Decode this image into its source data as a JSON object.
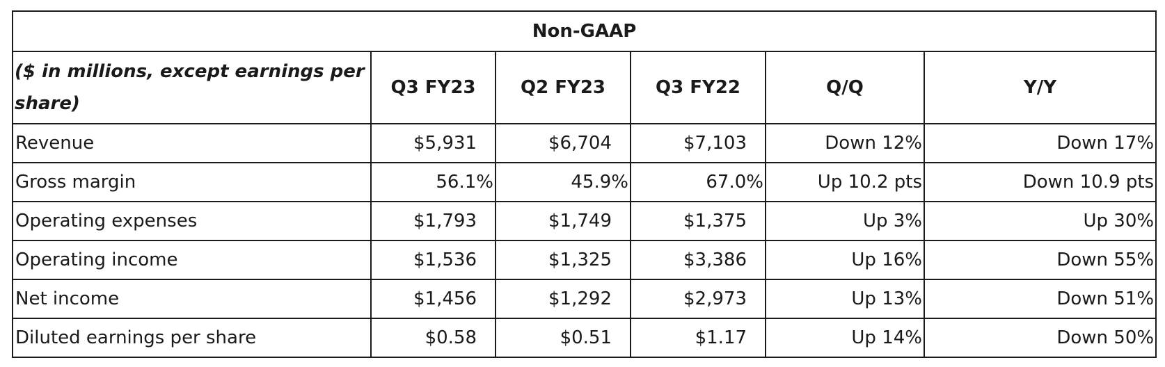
{
  "table": {
    "title": "Non-GAAP",
    "header": {
      "description": "($ in millions, except earnings per share)",
      "columns": [
        "Q3 FY23",
        "Q2 FY23",
        "Q3 FY22",
        "Q/Q",
        "Y/Y"
      ]
    },
    "rows": [
      {
        "label": "Revenue",
        "q3fy23": "$5,931",
        "q2fy23": "$6,704",
        "q3fy22": "$7,103",
        "qq": "Down 12%",
        "yy": "Down 17%"
      },
      {
        "label": "Gross margin",
        "q3fy23": "56.1%",
        "q2fy23": "45.9%",
        "q3fy22": "67.0%",
        "qq": "Up 10.2 pts",
        "yy": "Down 10.9 pts"
      },
      {
        "label": "Operating expenses",
        "q3fy23": "$1,793",
        "q2fy23": "$1,749",
        "q3fy22": "$1,375",
        "qq": "Up 3%",
        "yy": "Up 30%"
      },
      {
        "label": "Operating income",
        "q3fy23": "$1,536",
        "q2fy23": "$1,325",
        "q3fy22": "$3,386",
        "qq": "Up 16%",
        "yy": "Down 55%"
      },
      {
        "label": "Net income",
        "q3fy23": "$1,456",
        "q2fy23": "$1,292",
        "q3fy22": "$2,973",
        "qq": "Up 13%",
        "yy": "Down 51%"
      },
      {
        "label": "Diluted earnings per share",
        "q3fy23": "$0.58",
        "q2fy23": "$0.51",
        "q3fy22": "$1.17",
        "qq": "Up 14%",
        "yy": "Down 50%"
      }
    ]
  }
}
